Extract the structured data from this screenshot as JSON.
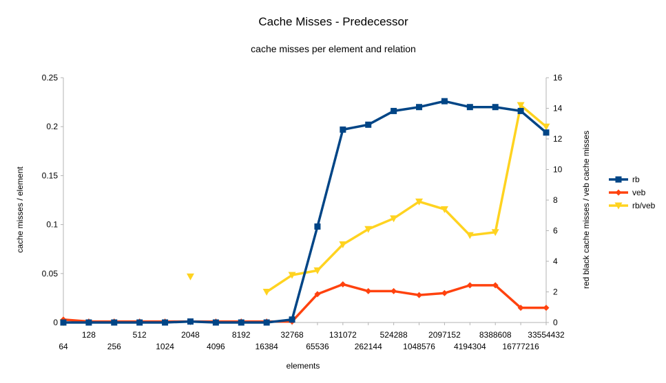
{
  "chart_data": {
    "type": "line",
    "title": "Cache Misses - Predecessor",
    "subtitle": "cache misses per element and relation",
    "xlabel": "elements",
    "ylabel": "cache misses / element",
    "y2label": "red black cache misses / veb cache misses",
    "categories": [
      "64",
      "128",
      "256",
      "512",
      "1024",
      "2048",
      "4096",
      "8192",
      "16384",
      "32768",
      "65536",
      "131072",
      "262144",
      "524288",
      "1048576",
      "2097152",
      "4194304",
      "8388608",
      "16777216",
      "33554432"
    ],
    "ylim": [
      0,
      0.25
    ],
    "yticks": [
      "0",
      "0.05",
      "0.1",
      "0.15",
      "0.2",
      "0.25"
    ],
    "y2lim": [
      0,
      16
    ],
    "y2ticks": [
      "0",
      "2",
      "4",
      "6",
      "8",
      "10",
      "12",
      "14",
      "16"
    ],
    "grid": false,
    "legend_position": "right",
    "series": [
      {
        "name": "rb",
        "axis": "left",
        "color": "#004586",
        "marker": "square",
        "values": [
          0,
          0,
          0,
          0,
          0,
          0.001,
          0,
          0,
          0,
          0.003,
          0.098,
          0.197,
          0.202,
          0.216,
          0.22,
          0.226,
          0.22,
          0.22,
          0.216,
          0.194
        ]
      },
      {
        "name": "veb",
        "axis": "left",
        "color": "#ff420e",
        "marker": "diamond",
        "values": [
          0.003,
          0.001,
          0.001,
          0.001,
          0.001,
          0.001,
          0.001,
          0.001,
          0.001,
          0.001,
          0.029,
          0.039,
          0.032,
          0.032,
          0.028,
          0.03,
          0.038,
          0.038,
          0.015,
          0.015
        ]
      },
      {
        "name": "rb/veb",
        "axis": "right",
        "color": "#ffd320",
        "marker": "triangle-down",
        "values": [
          0,
          null,
          null,
          null,
          null,
          3.0,
          null,
          null,
          2.0,
          3.1,
          3.4,
          5.1,
          6.1,
          6.8,
          7.9,
          7.4,
          5.7,
          5.9,
          14.2,
          12.8
        ],
        "connected": [
          [
            0,
            0
          ],
          [
            5,
            5
          ],
          [
            8,
            19
          ]
        ]
      }
    ]
  }
}
